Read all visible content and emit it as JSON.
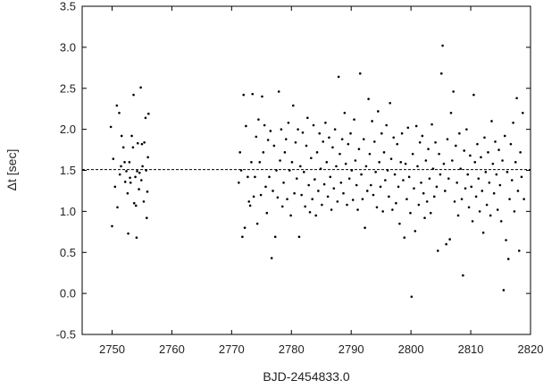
{
  "chart_data": {
    "type": "scatter",
    "title": "",
    "xlabel": "BJD-2454833.0",
    "ylabel": "Δt [sec]",
    "xlim": [
      2745,
      2820
    ],
    "ylim": [
      -0.5,
      3.5
    ],
    "xticks": [
      2750,
      2760,
      2770,
      2780,
      2790,
      2800,
      2810,
      2820
    ],
    "yticks": [
      -0.5,
      0.0,
      0.5,
      1.0,
      1.5,
      2.0,
      2.5,
      3.0,
      3.5
    ],
    "xtick_labels": [
      "2750",
      "2760",
      "2770",
      "2780",
      "2790",
      "2800",
      "2810",
      "2820"
    ],
    "ytick_labels": [
      "-0.5",
      "0.0",
      "0.5",
      "1.0",
      "1.5",
      "2.0",
      "2.5",
      "3.0",
      "3.5"
    ],
    "grid": false,
    "reference_line": {
      "y": 1.51,
      "style": "dashed"
    },
    "marker_color": "#000000",
    "series": [
      {
        "points": [
          [
            2749.8,
            2.03
          ],
          [
            2750.0,
            0.82
          ],
          [
            2750.2,
            1.64
          ],
          [
            2750.5,
            1.3
          ],
          [
            2750.8,
            2.29
          ],
          [
            2750.9,
            1.05
          ],
          [
            2751.2,
            2.2
          ],
          [
            2751.3,
            1.45
          ],
          [
            2751.5,
            1.55
          ],
          [
            2751.6,
            1.92
          ],
          [
            2751.9,
            1.78
          ],
          [
            2752.1,
            1.6
          ],
          [
            2752.2,
            1.36
          ],
          [
            2752.4,
            1.49
          ],
          [
            2752.6,
            1.22
          ],
          [
            2752.7,
            0.73
          ],
          [
            2752.9,
            1.6
          ],
          [
            2753.0,
            1.41
          ],
          [
            2753.1,
            1.35
          ],
          [
            2753.3,
            1.92
          ],
          [
            2753.5,
            1.78
          ],
          [
            2753.6,
            2.42
          ],
          [
            2753.7,
            1.1
          ],
          [
            2753.9,
            1.42
          ],
          [
            2754.0,
            1.07
          ],
          [
            2754.1,
            0.68
          ],
          [
            2754.2,
            1.49
          ],
          [
            2754.3,
            1.83
          ],
          [
            2754.5,
            1.27
          ],
          [
            2754.6,
            1.47
          ],
          [
            2754.8,
            2.51
          ],
          [
            2754.9,
            1.38
          ],
          [
            2755.0,
            1.82
          ],
          [
            2755.1,
            1.55
          ],
          [
            2755.3,
            1.12
          ],
          [
            2755.4,
            1.84
          ],
          [
            2755.6,
            2.14
          ],
          [
            2755.7,
            1.5
          ],
          [
            2755.8,
            0.92
          ],
          [
            2755.9,
            1.24
          ],
          [
            2756.0,
            1.66
          ],
          [
            2756.1,
            2.19
          ],
          [
            2771.2,
            1.35
          ],
          [
            2771.4,
            1.72
          ],
          [
            2771.6,
            1.5
          ],
          [
            2771.8,
            0.69
          ],
          [
            2772.0,
            2.42
          ],
          [
            2772.2,
            0.8
          ],
          [
            2772.4,
            2.04
          ],
          [
            2772.7,
            1.42
          ],
          [
            2772.9,
            1.12
          ],
          [
            2773.1,
            1.07
          ],
          [
            2773.3,
            1.6
          ],
          [
            2773.5,
            2.43
          ],
          [
            2773.7,
            1.18
          ],
          [
            2773.9,
            1.42
          ],
          [
            2774.1,
            1.91
          ],
          [
            2774.3,
            0.85
          ],
          [
            2774.5,
            2.12
          ],
          [
            2774.7,
            1.6
          ],
          [
            2774.9,
            1.2
          ],
          [
            2775.1,
            2.4
          ],
          [
            2775.3,
            1.72
          ],
          [
            2775.5,
            2.05
          ],
          [
            2775.7,
            1.3
          ],
          [
            2775.9,
            0.98
          ],
          [
            2776.1,
            1.87
          ],
          [
            2776.3,
            1.42
          ],
          [
            2776.5,
            1.98
          ],
          [
            2776.7,
            0.43
          ],
          [
            2776.9,
            1.25
          ],
          [
            2777.1,
            1.8
          ],
          [
            2777.3,
            0.69
          ],
          [
            2777.5,
            1.5
          ],
          [
            2777.7,
            1.17
          ],
          [
            2777.9,
            2.46
          ],
          [
            2778.1,
            1.62
          ],
          [
            2778.3,
            2.0
          ],
          [
            2778.5,
            1.06
          ],
          [
            2778.7,
            1.35
          ],
          [
            2778.9,
            1.72
          ],
          [
            2779.1,
            1.88
          ],
          [
            2779.3,
            1.15
          ],
          [
            2779.5,
            2.08
          ],
          [
            2779.7,
            1.5
          ],
          [
            2779.9,
            0.95
          ],
          [
            2780.1,
            1.6
          ],
          [
            2780.3,
            2.29
          ],
          [
            2780.5,
            1.22
          ],
          [
            2780.7,
            1.84
          ],
          [
            2780.9,
            1.4
          ],
          [
            2781.1,
            2.0
          ],
          [
            2781.3,
            0.69
          ],
          [
            2781.5,
            1.55
          ],
          [
            2781.7,
            1.2
          ],
          [
            2781.9,
            1.96
          ],
          [
            2782.1,
            1.48
          ],
          [
            2782.3,
            1.06
          ],
          [
            2782.5,
            1.8
          ],
          [
            2782.7,
            2.14
          ],
          [
            2782.9,
            1.32
          ],
          [
            2783.1,
            0.99
          ],
          [
            2783.3,
            1.65
          ],
          [
            2783.5,
            1.15
          ],
          [
            2783.7,
            2.05
          ],
          [
            2783.9,
            1.39
          ],
          [
            2784.1,
            0.95
          ],
          [
            2784.3,
            1.72
          ],
          [
            2784.5,
            1.25
          ],
          [
            2784.7,
            1.95
          ],
          [
            2784.9,
            1.52
          ],
          [
            2785.1,
            1.08
          ],
          [
            2785.3,
            1.85
          ],
          [
            2785.5,
            1.33
          ],
          [
            2785.7,
            2.08
          ],
          [
            2785.9,
            1.6
          ],
          [
            2786.1,
            1.18
          ],
          [
            2786.3,
            1.9
          ],
          [
            2786.5,
            1.42
          ],
          [
            2786.7,
            1.02
          ],
          [
            2786.9,
            1.78
          ],
          [
            2787.1,
            1.28
          ],
          [
            2787.3,
            2.0
          ],
          [
            2787.5,
            1.55
          ],
          [
            2787.7,
            1.12
          ],
          [
            2787.9,
            2.64
          ],
          [
            2788.1,
            1.7
          ],
          [
            2788.3,
            1.35
          ],
          [
            2788.5,
            1.88
          ],
          [
            2788.7,
            1.22
          ],
          [
            2788.9,
            2.2
          ],
          [
            2789.1,
            1.58
          ],
          [
            2789.3,
            1.08
          ],
          [
            2789.5,
            1.82
          ],
          [
            2789.7,
            1.4
          ],
          [
            2789.9,
            1.95
          ],
          [
            2790.1,
            1.5
          ],
          [
            2790.3,
            1.14
          ],
          [
            2790.5,
            2.12
          ],
          [
            2790.7,
            1.62
          ],
          [
            2790.9,
            1.32
          ],
          [
            2791.1,
            1.02
          ],
          [
            2791.3,
            1.76
          ],
          [
            2791.5,
            2.68
          ],
          [
            2791.7,
            1.45
          ],
          [
            2791.9,
            1.15
          ],
          [
            2792.1,
            1.88
          ],
          [
            2792.3,
            0.8
          ],
          [
            2792.5,
            1.55
          ],
          [
            2792.7,
            1.25
          ],
          [
            2792.9,
            2.37
          ],
          [
            2793.1,
            1.7
          ],
          [
            2793.3,
            1.32
          ],
          [
            2793.5,
            2.1
          ],
          [
            2793.7,
            1.2
          ],
          [
            2793.9,
            1.85
          ],
          [
            2794.1,
            1.48
          ],
          [
            2794.3,
            1.05
          ],
          [
            2794.5,
            2.22
          ],
          [
            2794.7,
            1.6
          ],
          [
            2794.9,
            1.3
          ],
          [
            2795.1,
            1.95
          ],
          [
            2795.3,
            1.0
          ],
          [
            2795.5,
            1.72
          ],
          [
            2795.7,
            1.38
          ],
          [
            2795.9,
            2.05
          ],
          [
            2796.1,
            1.5
          ],
          [
            2796.3,
            1.18
          ],
          [
            2796.5,
            2.32
          ],
          [
            2796.7,
            1.64
          ],
          [
            2796.9,
            1.02
          ],
          [
            2797.1,
            1.9
          ],
          [
            2797.3,
            1.45
          ],
          [
            2797.5,
            1.1
          ],
          [
            2797.7,
            1.82
          ],
          [
            2797.9,
            1.3
          ],
          [
            2798.1,
            0.85
          ],
          [
            2798.3,
            1.6
          ],
          [
            2798.5,
            1.95
          ],
          [
            2798.7,
            1.38
          ],
          [
            2798.9,
            0.68
          ],
          [
            2799.1,
            1.58
          ],
          [
            2799.3,
            1.15
          ],
          [
            2799.5,
            2.02
          ],
          [
            2799.7,
            1.42
          ],
          [
            2799.9,
            0.98
          ],
          [
            2800.1,
            -0.04
          ],
          [
            2800.3,
            1.7
          ],
          [
            2800.5,
            1.28
          ],
          [
            2800.7,
            0.76
          ],
          [
            2800.9,
            2.04
          ],
          [
            2801.1,
            1.55
          ],
          [
            2801.3,
            1.08
          ],
          [
            2801.5,
            1.84
          ],
          [
            2801.7,
            1.35
          ],
          [
            2801.9,
            1.92
          ],
          [
            2802.1,
            1.22
          ],
          [
            2802.3,
            0.92
          ],
          [
            2802.5,
            1.62
          ],
          [
            2802.7,
            1.12
          ],
          [
            2802.9,
            1.76
          ],
          [
            2803.1,
            1.4
          ],
          [
            2803.3,
            0.98
          ],
          [
            2803.5,
            2.06
          ],
          [
            2803.7,
            1.52
          ],
          [
            2803.9,
            1.18
          ],
          [
            2804.1,
            1.84
          ],
          [
            2804.3,
            1.3
          ],
          [
            2804.5,
            0.52
          ],
          [
            2804.7,
            1.7
          ],
          [
            2804.9,
            1.45
          ],
          [
            2805.1,
            2.68
          ],
          [
            2805.3,
            3.02
          ],
          [
            2805.5,
            1.58
          ],
          [
            2805.7,
            1.25
          ],
          [
            2805.9,
            0.6
          ],
          [
            2806.1,
            1.88
          ],
          [
            2806.3,
            1.4
          ],
          [
            2806.5,
            0.66
          ],
          [
            2806.7,
            2.2
          ],
          [
            2806.9,
            1.62
          ],
          [
            2807.1,
            2.46
          ],
          [
            2807.3,
            1.12
          ],
          [
            2807.5,
            1.8
          ],
          [
            2807.7,
            1.35
          ],
          [
            2807.9,
            0.95
          ],
          [
            2808.1,
            1.95
          ],
          [
            2808.3,
            1.52
          ],
          [
            2808.5,
            1.15
          ],
          [
            2808.7,
            0.22
          ],
          [
            2808.9,
            1.74
          ],
          [
            2809.1,
            1.28
          ],
          [
            2809.3,
            2.0
          ],
          [
            2809.5,
            1.45
          ],
          [
            2809.7,
            1.05
          ],
          [
            2809.9,
            1.68
          ],
          [
            2810.1,
            1.3
          ],
          [
            2810.3,
            0.88
          ],
          [
            2810.5,
            2.42
          ],
          [
            2810.7,
            1.6
          ],
          [
            2810.9,
            1.18
          ],
          [
            2811.1,
            1.82
          ],
          [
            2811.3,
            1.4
          ],
          [
            2811.5,
            1.0
          ],
          [
            2811.7,
            1.66
          ],
          [
            2811.9,
            1.25
          ],
          [
            2812.1,
            0.74
          ],
          [
            2812.3,
            1.9
          ],
          [
            2812.5,
            1.48
          ],
          [
            2812.7,
            1.08
          ],
          [
            2812.9,
            1.72
          ],
          [
            2813.1,
            1.35
          ],
          [
            2813.3,
            0.95
          ],
          [
            2813.5,
            2.1
          ],
          [
            2813.7,
            1.58
          ],
          [
            2813.9,
            1.22
          ],
          [
            2814.1,
            1.85
          ],
          [
            2814.3,
            1.45
          ],
          [
            2814.5,
            1.02
          ],
          [
            2814.7,
            1.75
          ],
          [
            2814.9,
            1.32
          ],
          [
            2815.1,
            0.88
          ],
          [
            2815.3,
            1.62
          ],
          [
            2815.5,
            0.04
          ],
          [
            2815.7,
            1.92
          ],
          [
            2815.9,
            0.65
          ],
          [
            2816.1,
            1.48
          ],
          [
            2816.3,
            0.42
          ],
          [
            2816.5,
            1.15
          ],
          [
            2816.7,
            1.82
          ],
          [
            2816.9,
            1.38
          ],
          [
            2817.1,
            2.08
          ],
          [
            2817.3,
            1.0
          ],
          [
            2817.5,
            1.6
          ],
          [
            2817.7,
            2.38
          ],
          [
            2817.9,
            1.25
          ],
          [
            2818.1,
            0.52
          ],
          [
            2818.3,
            1.72
          ],
          [
            2818.5,
            1.42
          ],
          [
            2818.7,
            2.2
          ],
          [
            2818.9,
            1.15
          ]
        ]
      }
    ]
  }
}
